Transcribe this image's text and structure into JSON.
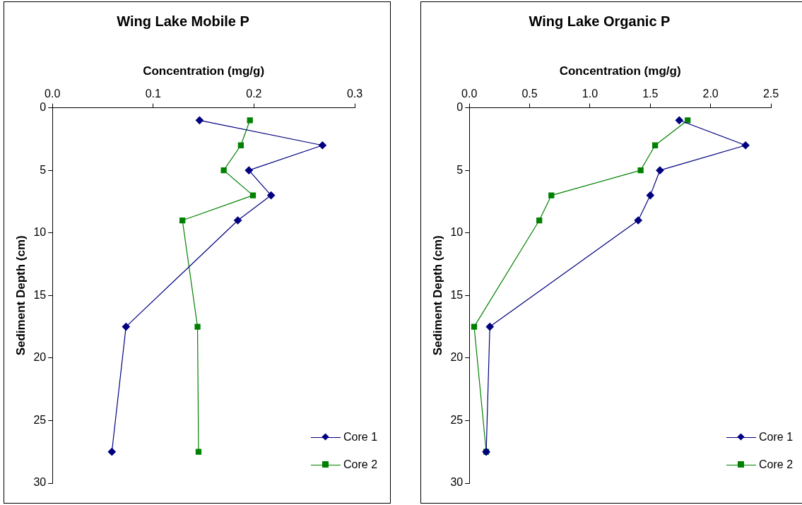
{
  "chart_data": [
    {
      "type": "line",
      "title": "Wing Lake Mobile P",
      "xlabel": "Concentration (mg/g)",
      "ylabel": "Sediment Depth (cm)",
      "xlim": [
        0,
        0.3
      ],
      "xticks": [
        {
          "value": 0,
          "label": "0.0"
        },
        0.1,
        0.2,
        0.3
      ],
      "ylim": [
        30,
        0
      ],
      "yticks": [
        0,
        5,
        10,
        15,
        20,
        25,
        30
      ],
      "grid": false,
      "legend": "bottom right",
      "series": [
        {
          "name": "Core 1",
          "color": "#000080",
          "marker": "diamond",
          "x": [
            0.146,
            0.268,
            0.195,
            0.217,
            0.184,
            0.073,
            0.059
          ],
          "values": [
            1,
            3,
            5,
            7,
            9,
            17.5,
            27.5
          ]
        },
        {
          "name": "Core 2",
          "color": "#008000",
          "marker": "square",
          "x": [
            0.196,
            0.187,
            0.17,
            0.199,
            0.129,
            0.144,
            0.145
          ],
          "values": [
            1,
            3,
            5,
            7,
            9,
            17.5,
            27.5
          ]
        }
      ]
    },
    {
      "type": "line",
      "title": "Wing Lake Organic P",
      "xlabel": "Concentration (mg/g)",
      "ylabel": "Sediment Depth (cm)",
      "xlim": [
        0,
        2.5
      ],
      "xticks": [
        {
          "value": 0,
          "label": "0.0"
        },
        0.5,
        {
          "value": 1,
          "label": "1.0"
        },
        1.5,
        {
          "value": 2,
          "label": "2.0"
        },
        2.5
      ],
      "ylim": [
        30,
        0
      ],
      "yticks": [
        0,
        5,
        10,
        15,
        20,
        25,
        30
      ],
      "grid": false,
      "legend": "bottom right",
      "series": [
        {
          "name": "Core 1",
          "color": "#000080",
          "marker": "diamond",
          "x": [
            1.74,
            2.29,
            1.58,
            1.5,
            1.4,
            0.17,
            0.14
          ],
          "values": [
            1,
            3,
            5,
            7,
            9,
            17.5,
            27.5
          ]
        },
        {
          "name": "Core 2",
          "color": "#008000",
          "marker": "square",
          "x": [
            1.81,
            1.54,
            1.42,
            0.68,
            0.58,
            0.04,
            0.14
          ],
          "values": [
            1,
            3,
            5,
            7,
            9,
            17.5,
            27.5
          ]
        }
      ]
    }
  ]
}
